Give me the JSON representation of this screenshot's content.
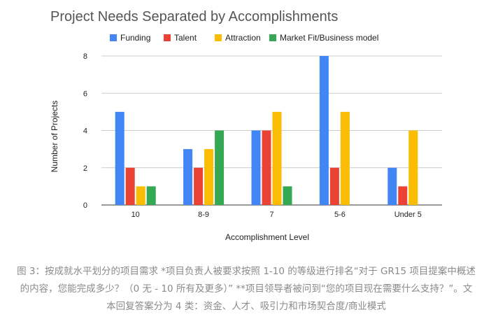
{
  "chart_data": {
    "type": "bar",
    "title": "Project Needs Separated by Accomplishments",
    "xlabel": "Accomplishment Level",
    "ylabel": "Number of Projects",
    "categories": [
      "10",
      "8-9",
      "7",
      "5-6",
      "Under 5"
    ],
    "ylim": [
      0,
      8
    ],
    "yticks": [
      0,
      2,
      4,
      6,
      8
    ],
    "grid": true,
    "legend_position": "top",
    "series": [
      {
        "name": "Funding",
        "color": "#4285F4",
        "values": [
          5,
          3,
          4,
          8,
          2
        ]
      },
      {
        "name": "Talent",
        "color": "#EA4335",
        "values": [
          2,
          2,
          4,
          2,
          1
        ]
      },
      {
        "name": "Attraction",
        "color": "#FBBC04",
        "values": [
          1,
          3,
          5,
          5,
          4
        ]
      },
      {
        "name": "Market Fit/Business model",
        "color": "#34A853",
        "values": [
          1,
          4,
          1,
          0,
          0
        ]
      }
    ]
  },
  "caption": "图 3：按成就水平划分的项目需求 *项目负责人被要求按照 1-10 的等级进行排名“对于 GR15 项目提案中概述的内容，您能完成多少？（0 无 - 10 所有及更多）” **项目领导者被问到“您的项目现在需要什么支持？”。文本回复答案分为 4 类：资金、人才、吸引力和市场契合度/商业模式"
}
